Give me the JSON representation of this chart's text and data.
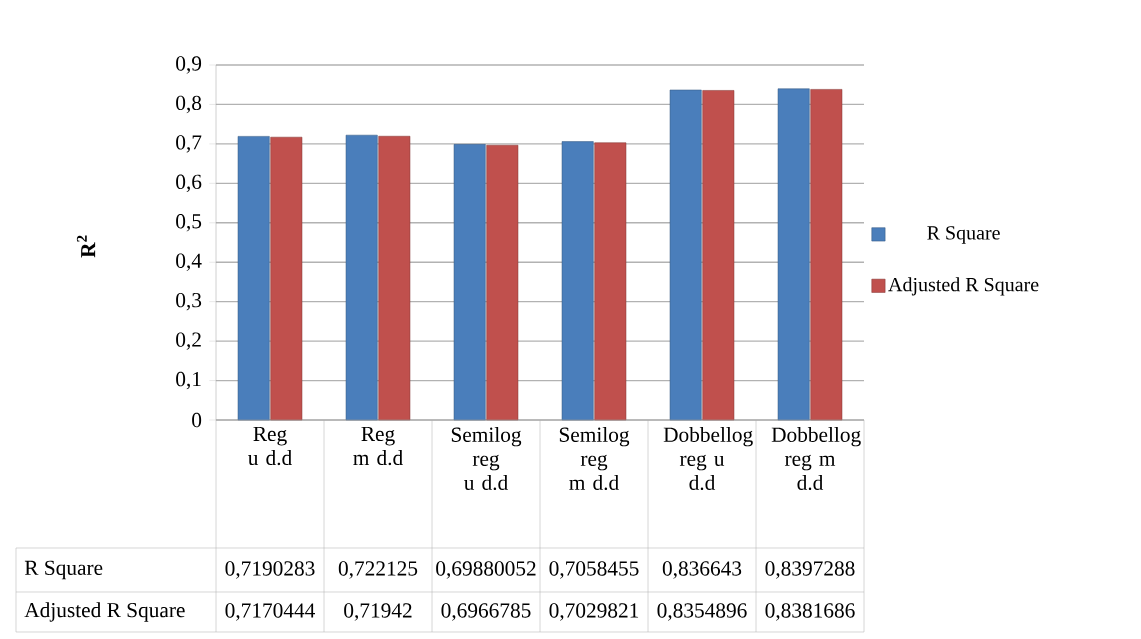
{
  "chart_data": {
    "type": "bar",
    "ylabel": "R$^{2}$",
    "categories": [
      "Reg u d.d",
      "Reg m d.d",
      "Semilog reg u d.d",
      "Semilog reg m d.d",
      "Dobbellog reg u d.d",
      "Dobbellog reg m d.d"
    ],
    "series": [
      {
        "name": "R Square",
        "color": "#4a7ebb",
        "values": [
          0.7190283,
          0.722125,
          0.69880052,
          0.7058455,
          0.836643,
          0.8397288
        ],
        "value_labels": [
          "0,7190283",
          "0,722125",
          "0,69880052",
          "0,7058455",
          "0,836643",
          "0,8397288"
        ]
      },
      {
        "name": "Adjusted R Square",
        "color": "#c0504d",
        "values": [
          0.7170444,
          0.71942,
          0.6966785,
          0.7029821,
          0.8354896,
          0.8381686
        ],
        "value_labels": [
          "0,7170444",
          "0,71942",
          "0,6966785",
          "0,7029821",
          "0,8354896",
          "0,8381686"
        ]
      }
    ],
    "ylim": [
      0,
      0.9
    ],
    "yticks": [
      0,
      {
        "value": 0.1,
        "label": "0,1"
      },
      {
        "value": 0.2,
        "label": "0,2"
      },
      {
        "value": 0.3,
        "label": "0,3"
      },
      {
        "value": 0.4,
        "label": "0,4"
      },
      {
        "value": 0.5,
        "label": "0,5"
      },
      {
        "value": 0.6,
        "label": "0,6"
      },
      {
        "value": 0.7,
        "label": "0,7"
      },
      {
        "value": 0.8,
        "label": "0,8"
      },
      {
        "value": 0.9,
        "label": "0,9"
      }
    ],
    "grid": "y",
    "legend": "right"
  }
}
